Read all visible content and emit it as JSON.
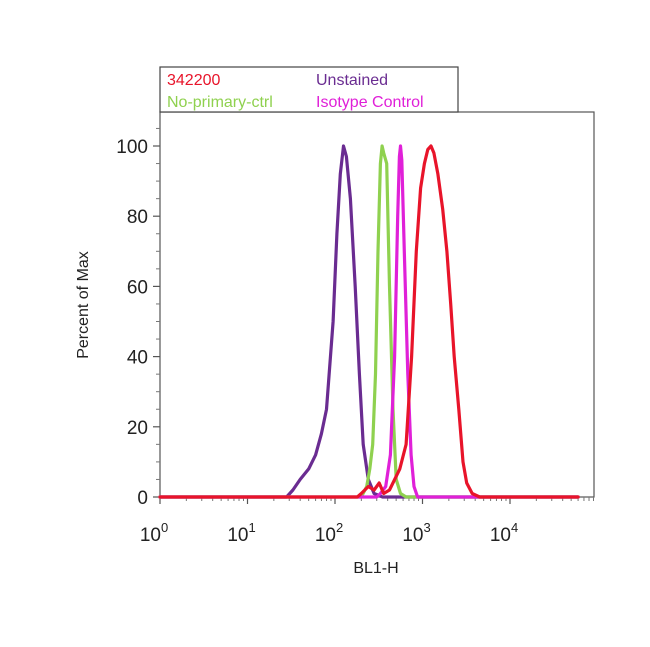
{
  "chart_data": {
    "type": "line",
    "xlabel": "BL1-H",
    "ylabel": "Percent of Max",
    "x_scale": "log",
    "xlim": [
      1,
      60000
    ],
    "ylim": [
      0,
      110
    ],
    "x_ticks": [
      {
        "base": "10",
        "exp": "0",
        "value": 1
      },
      {
        "base": "10",
        "exp": "1",
        "value": 10
      },
      {
        "base": "10",
        "exp": "2",
        "value": 100
      },
      {
        "base": "10",
        "exp": "3",
        "value": 1000
      },
      {
        "base": "10",
        "exp": "4",
        "value": 10000
      }
    ],
    "y_ticks": [
      "0",
      "20",
      "40",
      "60",
      "80",
      "100"
    ],
    "legend_position": "top-left",
    "legend": [
      {
        "label": "342200",
        "color": "#e8142a"
      },
      {
        "label": "Unstained",
        "color": "#6a2c91"
      },
      {
        "label": "No-primary-ctrl",
        "color": "#8fd14f"
      },
      {
        "label": "Isotype Control",
        "color": "#e020d8"
      }
    ],
    "series": [
      {
        "name": "Unstained",
        "color": "#6a2c91",
        "points": [
          [
            1,
            0
          ],
          [
            28,
            0
          ],
          [
            33,
            2
          ],
          [
            40,
            5
          ],
          [
            50,
            8
          ],
          [
            60,
            12
          ],
          [
            70,
            18
          ],
          [
            80,
            25
          ],
          [
            95,
            50
          ],
          [
            105,
            75
          ],
          [
            115,
            92
          ],
          [
            125,
            100
          ],
          [
            135,
            97
          ],
          [
            150,
            85
          ],
          [
            170,
            60
          ],
          [
            190,
            35
          ],
          [
            210,
            15
          ],
          [
            240,
            5
          ],
          [
            280,
            1
          ],
          [
            350,
            0
          ],
          [
            60000,
            0
          ]
        ]
      },
      {
        "name": "No-primary-ctrl",
        "color": "#8fd14f",
        "points": [
          [
            1,
            0
          ],
          [
            200,
            0
          ],
          [
            230,
            3
          ],
          [
            250,
            8
          ],
          [
            270,
            15
          ],
          [
            290,
            35
          ],
          [
            310,
            70
          ],
          [
            330,
            95
          ],
          [
            345,
            100
          ],
          [
            360,
            98
          ],
          [
            390,
            95
          ],
          [
            420,
            60
          ],
          [
            460,
            25
          ],
          [
            500,
            5
          ],
          [
            560,
            1
          ],
          [
            650,
            0
          ],
          [
            60000,
            0
          ]
        ]
      },
      {
        "name": "Isotype Control",
        "color": "#e020d8",
        "points": [
          [
            1,
            0
          ],
          [
            300,
            0
          ],
          [
            330,
            1
          ],
          [
            380,
            3
          ],
          [
            430,
            12
          ],
          [
            480,
            40
          ],
          [
            520,
            80
          ],
          [
            545,
            97
          ],
          [
            560,
            100
          ],
          [
            580,
            96
          ],
          [
            620,
            70
          ],
          [
            680,
            35
          ],
          [
            740,
            12
          ],
          [
            800,
            3
          ],
          [
            880,
            0
          ],
          [
            60000,
            0
          ]
        ]
      },
      {
        "name": "342200",
        "color": "#e8142a",
        "points": [
          [
            1,
            0
          ],
          [
            180,
            0
          ],
          [
            200,
            1
          ],
          [
            240,
            3
          ],
          [
            280,
            2
          ],
          [
            320,
            4
          ],
          [
            360,
            1
          ],
          [
            420,
            2
          ],
          [
            550,
            8
          ],
          [
            650,
            15
          ],
          [
            750,
            40
          ],
          [
            850,
            70
          ],
          [
            950,
            88
          ],
          [
            1050,
            95
          ],
          [
            1150,
            99
          ],
          [
            1250,
            100
          ],
          [
            1350,
            98
          ],
          [
            1500,
            92
          ],
          [
            1700,
            82
          ],
          [
            1900,
            70
          ],
          [
            2100,
            55
          ],
          [
            2300,
            40
          ],
          [
            2600,
            25
          ],
          [
            2900,
            10
          ],
          [
            3200,
            4
          ],
          [
            3700,
            1
          ],
          [
            4500,
            0
          ],
          [
            60000,
            0
          ]
        ]
      }
    ]
  }
}
